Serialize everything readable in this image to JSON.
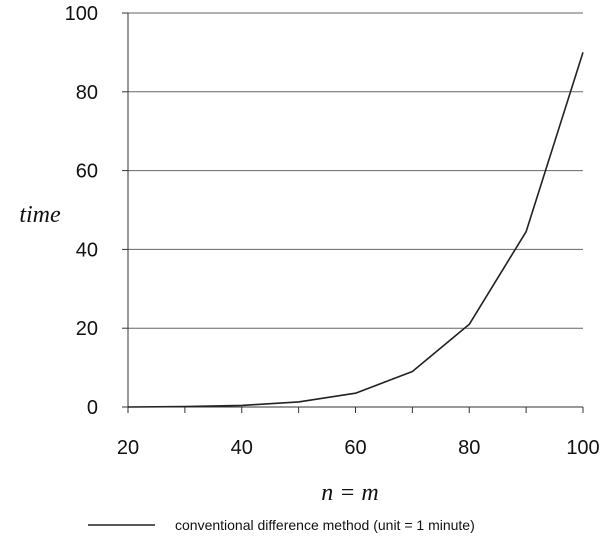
{
  "chart_data": {
    "type": "line",
    "title": "",
    "xlabel": "n = m",
    "ylabel": "time",
    "xlim": [
      20,
      100
    ],
    "ylim": [
      0,
      100
    ],
    "xticks": [
      20,
      40,
      60,
      80,
      100
    ],
    "yticks": [
      0,
      20,
      40,
      60,
      80,
      100
    ],
    "grid": "horizontal",
    "legend": "bottom",
    "series": [
      {
        "name": "conventional difference method (unit = 1 minute)",
        "color": "#222222",
        "x": [
          20,
          30,
          40,
          50,
          60,
          70,
          80,
          90,
          100
        ],
        "y": [
          0.0,
          0.1,
          0.4,
          1.3,
          3.5,
          9,
          21,
          44.5,
          90
        ]
      }
    ]
  }
}
